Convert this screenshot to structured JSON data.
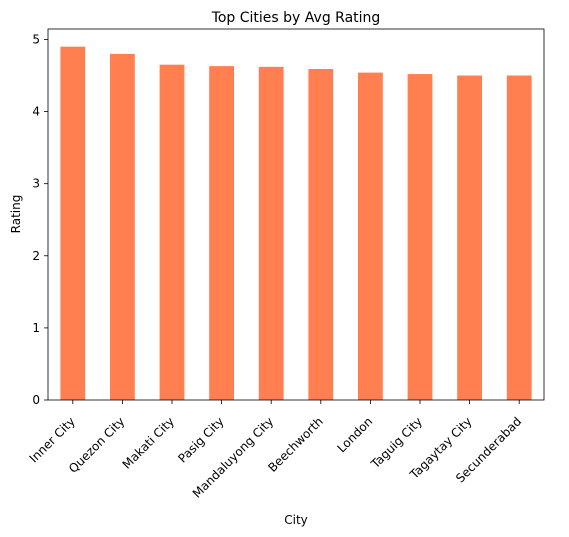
{
  "chart_data": {
    "type": "bar",
    "title": "Top Cities by Avg Rating",
    "xlabel": "City",
    "ylabel": "Rating",
    "categories": [
      "Inner City",
      "Quezon City",
      "Makati City",
      "Pasig City",
      "Mandaluyong City",
      "Beechworth",
      "London",
      "Taguig City",
      "Tagaytay City",
      "Secunderabad"
    ],
    "values": [
      4.9,
      4.8,
      4.65,
      4.63,
      4.62,
      4.59,
      4.54,
      4.52,
      4.5,
      4.5
    ],
    "yticks": [
      "0",
      "1",
      "2",
      "3",
      "4",
      "5"
    ],
    "ylim": [
      0,
      5.145
    ],
    "bar_color": "#ff7f50",
    "grid": false,
    "legend": "none"
  }
}
